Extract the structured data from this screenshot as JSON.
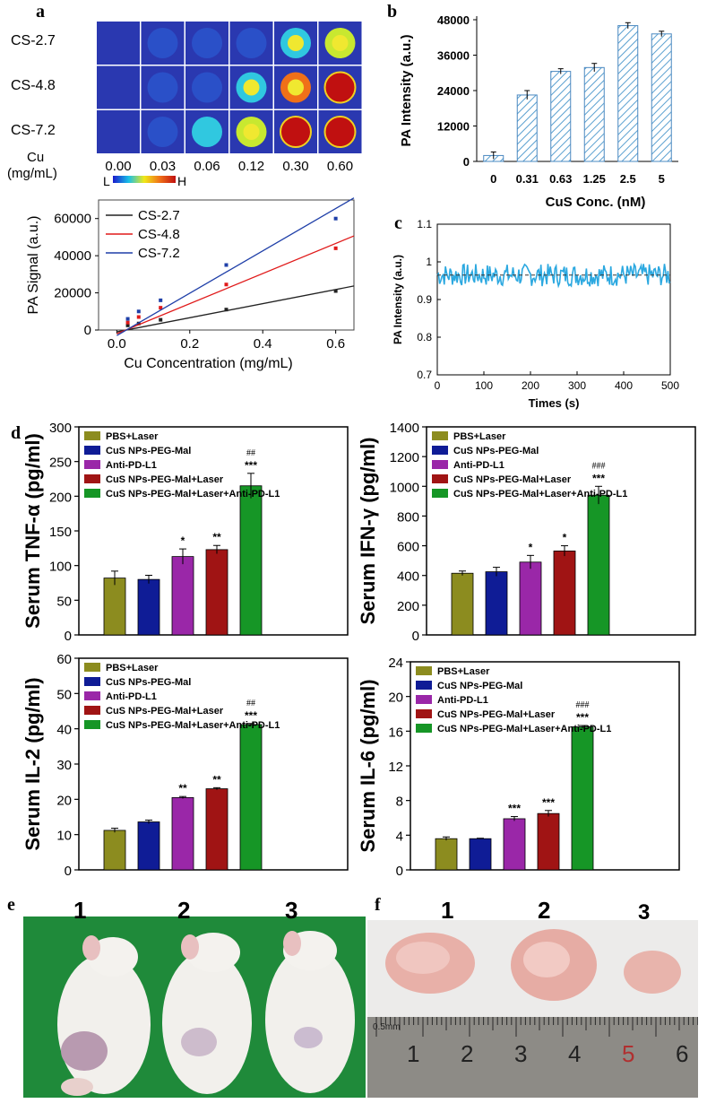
{
  "panel_labels": {
    "a": "a",
    "b": "b",
    "c": "c",
    "d": "d",
    "e": "e",
    "f": "f"
  },
  "colors": {
    "olive": "#8c8c1f",
    "navy": "#0f1c96",
    "purple": "#9a27a8",
    "darkred": "#a01414",
    "green": "#169626",
    "hatch": "#5aa0d0",
    "cyan": "#2ba8e0",
    "black_line": "#222222",
    "red_line": "#e01a1a",
    "blue_line": "#1f3fa8",
    "green_bg": "#1f8a3a"
  },
  "pa_image": {
    "rows": [
      "CS-2.7",
      "CS-4.8",
      "CS-7.2"
    ],
    "cu_label_line1": "Cu",
    "cu_label_line2": "(mg/mL)",
    "columns": [
      "0.00",
      "0.03",
      "0.06",
      "0.12",
      "0.30",
      "0.60"
    ],
    "scale_low": "L",
    "scale_high": "H",
    "intensity": [
      [
        0.0,
        0.08,
        0.12,
        0.28,
        0.45,
        0.62
      ],
      [
        0.0,
        0.1,
        0.18,
        0.4,
        0.8,
        0.95
      ],
      [
        0.0,
        0.14,
        0.35,
        0.55,
        0.95,
        1.0
      ]
    ]
  },
  "chart_data": [
    {
      "id": "a-line",
      "type": "scatter",
      "title": "",
      "xlabel": "Cu Concentration (mg/mL)",
      "ylabel": "PA Signal (a.u.)",
      "xlim": [
        -0.05,
        0.65
      ],
      "ylim": [
        0,
        70000
      ],
      "xticks": [
        "0.0",
        "0.2",
        "0.4",
        "0.6"
      ],
      "yticks": [
        "0",
        "20000",
        "40000",
        "60000"
      ],
      "x": [
        0.03,
        0.06,
        0.12,
        0.3,
        0.6
      ],
      "series": [
        {
          "name": "CS-2.7",
          "values": [
            2500,
            3500,
            5500,
            11000,
            21000
          ],
          "fit": [
            -1000,
            38000
          ]
        },
        {
          "name": "CS-4.8",
          "values": [
            4000,
            7000,
            12000,
            24500,
            44000
          ],
          "fit": [
            -2000,
            81000
          ]
        },
        {
          "name": "CS-7.2",
          "values": [
            6000,
            10000,
            16000,
            35000,
            60000
          ],
          "fit": [
            -3000,
            114000
          ]
        }
      ]
    },
    {
      "id": "b-bar",
      "type": "bar",
      "title": "",
      "xlabel": "CuS Conc. (nM)",
      "ylabel": "PA Intensity (a.u.)",
      "categories": [
        "0",
        "0.31",
        "0.63",
        "1.25",
        "2.5",
        "5"
      ],
      "values": [
        2000,
        22500,
        30500,
        31800,
        46000,
        43200
      ],
      "errors": [
        1200,
        1500,
        900,
        1400,
        1000,
        900
      ],
      "ylim": [
        0,
        48000
      ],
      "yticks": [
        "0",
        "12000",
        "24000",
        "36000",
        "48000"
      ]
    },
    {
      "id": "c-line",
      "type": "line",
      "title": "",
      "xlabel": "Times (s)",
      "ylabel": "PA Intensity (a.u.)",
      "xlim": [
        0,
        500
      ],
      "ylim": [
        0.7,
        1.1
      ],
      "xticks": [
        "0",
        "100",
        "200",
        "300",
        "400",
        "500"
      ],
      "yticks": [
        "0.7",
        "0.8",
        "0.9",
        "1",
        "1.1"
      ],
      "mean": 0.965,
      "amplitude": 0.03
    },
    {
      "id": "d-tnf",
      "type": "bar",
      "title": "",
      "xlabel": "",
      "ylabel": "Serum TNF-α (pg/ml)",
      "categories": [
        "PBS+Laser",
        "CuS NPs-PEG-Mal",
        "Anti-PD-L1",
        "CuS NPs-PEG-Mal+Laser",
        "CuS NPs-PEG-Mal+Laser+Anti-PD-L1"
      ],
      "values": [
        82,
        80,
        113,
        123,
        215
      ],
      "errors": [
        10,
        6,
        11,
        6,
        18
      ],
      "sig": [
        "",
        "",
        "*",
        "**",
        "***"
      ],
      "sig2": [
        "",
        "",
        "",
        "",
        "##"
      ],
      "ylim": [
        0,
        300
      ],
      "yticks": [
        "0",
        "50",
        "100",
        "150",
        "200",
        "250",
        "300"
      ]
    },
    {
      "id": "d-ifn",
      "type": "bar",
      "title": "",
      "xlabel": "",
      "ylabel": "Serum IFN-γ (pg/ml)",
      "categories": [
        "PBS+Laser",
        "CuS NPs-PEG-Mal",
        "Anti-PD-L1",
        "CuS NPs-PEG-Mal+Laser",
        "CuS NPs-PEG-Mal+Laser+Anti-PD-L1"
      ],
      "values": [
        415,
        425,
        490,
        565,
        940
      ],
      "errors": [
        15,
        30,
        45,
        35,
        60
      ],
      "sig": [
        "",
        "",
        "*",
        "*",
        "***"
      ],
      "sig2": [
        "",
        "",
        "",
        "",
        "###"
      ],
      "ylim": [
        0,
        1400
      ],
      "yticks": [
        "0",
        "200",
        "400",
        "600",
        "800",
        "1000",
        "1200",
        "1400"
      ]
    },
    {
      "id": "d-il2",
      "type": "bar",
      "title": "",
      "xlabel": "",
      "ylabel": "Serum IL-2 (pg/ml)",
      "categories": [
        "PBS+Laser",
        "CuS NPs-PEG-Mal",
        "Anti-PD-L1",
        "CuS NPs-PEG-Mal+Laser",
        "CuS NPs-PEG-Mal+Laser+Anti-PD-L1"
      ],
      "values": [
        11.2,
        13.6,
        20.5,
        23,
        41.2
      ],
      "errors": [
        0.6,
        0.5,
        0.3,
        0.3,
        0.3
      ],
      "sig": [
        "",
        "",
        "**",
        "**",
        "***"
      ],
      "sig2": [
        "",
        "",
        "",
        "",
        "##"
      ],
      "ylim": [
        0,
        60
      ],
      "yticks": [
        "0",
        "10",
        "20",
        "30",
        "40",
        "50",
        "60"
      ]
    },
    {
      "id": "d-il6",
      "type": "bar",
      "title": "",
      "xlabel": "",
      "ylabel": "Serum IL-6 (pg/ml)",
      "categories": [
        "PBS+Laser",
        "CuS NPs-PEG-Mal",
        "Anti-PD-L1",
        "CuS NPs-PEG-Mal+Laser",
        "CuS NPs-PEG-Mal+Laser+Anti-PD-L1"
      ],
      "values": [
        3.6,
        3.6,
        5.9,
        6.5,
        16.5
      ],
      "errors": [
        0.2,
        0.05,
        0.25,
        0.35,
        0.15
      ],
      "sig": [
        "",
        "",
        "***",
        "***",
        "***"
      ],
      "sig2": [
        "",
        "",
        "",
        "",
        "###"
      ],
      "ylim": [
        0,
        24
      ],
      "yticks": [
        "0",
        "4",
        "8",
        "12",
        "16",
        "20",
        "24"
      ]
    }
  ],
  "photo_e": {
    "labels": [
      "1",
      "2",
      "3"
    ]
  },
  "photo_f": {
    "labels": [
      "1",
      "2",
      "3"
    ],
    "ruler_numbers": [
      "1",
      "2",
      "3",
      "4",
      "5",
      "6"
    ],
    "ruler_unit": "0.5mm"
  }
}
